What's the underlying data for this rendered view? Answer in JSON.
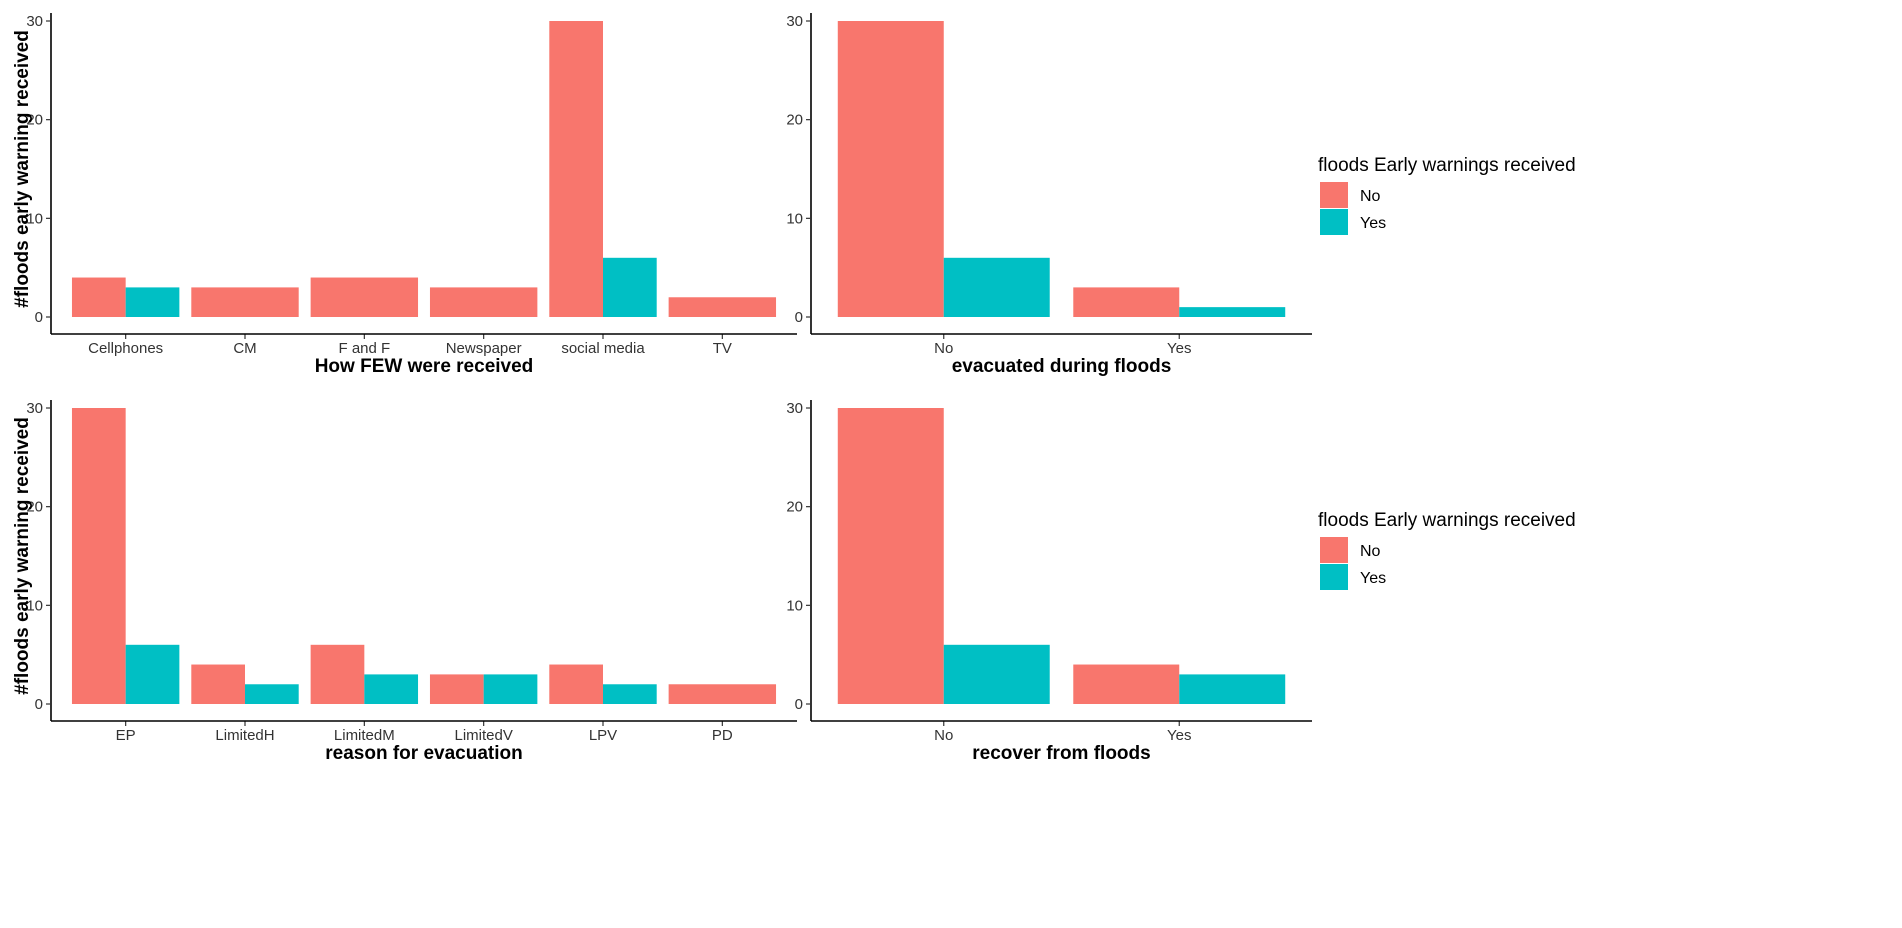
{
  "colors": {
    "No": "#F8766D",
    "Yes": "#00BFC4"
  },
  "legend": {
    "title": "floods Early warnings received",
    "labels": [
      "No",
      "Yes"
    ]
  },
  "chart_data": [
    {
      "type": "bar",
      "xlabel": "How FEW were received",
      "ylabel": "#floods early warning received",
      "ylim": [
        0,
        30
      ],
      "yticks": [
        0,
        10,
        20,
        30
      ],
      "categories": [
        "Cellphones",
        "CM",
        "F and F",
        "Newspaper",
        "social media",
        "TV"
      ],
      "series": [
        {
          "name": "No",
          "values": [
            4,
            3,
            4,
            3,
            30,
            2
          ]
        },
        {
          "name": "Yes",
          "values": [
            3,
            null,
            null,
            null,
            6,
            null
          ]
        }
      ]
    },
    {
      "type": "bar",
      "xlabel": "evacuated during floods",
      "ylabel": "",
      "ylim": [
        0,
        30
      ],
      "yticks": [
        0,
        10,
        20,
        30
      ],
      "categories": [
        "No",
        "Yes"
      ],
      "series": [
        {
          "name": "No",
          "values": [
            30,
            3
          ]
        },
        {
          "name": "Yes",
          "values": [
            6,
            1
          ]
        }
      ]
    },
    {
      "type": "bar",
      "xlabel": "reason for evacuation",
      "ylabel": "#floods early warning received",
      "ylim": [
        0,
        30
      ],
      "yticks": [
        0,
        10,
        20,
        30
      ],
      "categories": [
        "EP",
        "LimitedH",
        "LimitedM",
        "LimitedV",
        "LPV",
        "PD"
      ],
      "series": [
        {
          "name": "No",
          "values": [
            30,
            4,
            6,
            3,
            4,
            2
          ]
        },
        {
          "name": "Yes",
          "values": [
            6,
            2,
            3,
            3,
            2,
            null
          ]
        }
      ]
    },
    {
      "type": "bar",
      "xlabel": "recover from floods",
      "ylabel": "",
      "ylim": [
        0,
        30
      ],
      "yticks": [
        0,
        10,
        20,
        30
      ],
      "categories": [
        "No",
        "Yes"
      ],
      "series": [
        {
          "name": "No",
          "values": [
            30,
            4
          ]
        },
        {
          "name": "Yes",
          "values": [
            6,
            3
          ]
        }
      ]
    }
  ]
}
